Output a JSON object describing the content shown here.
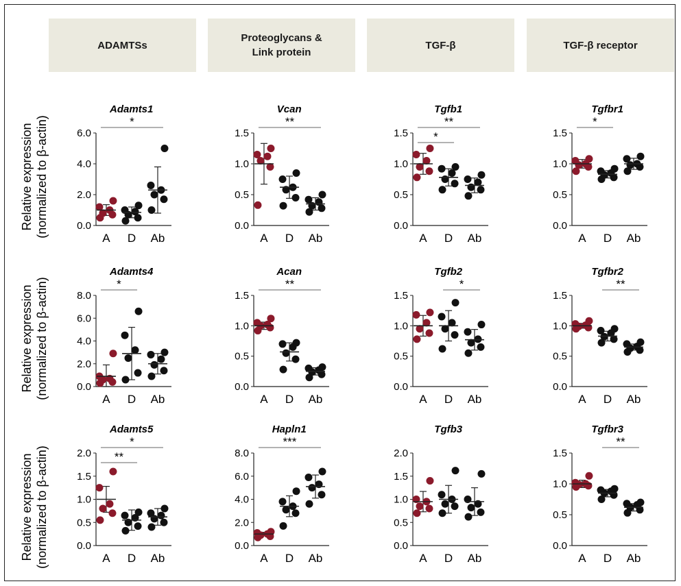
{
  "colors": {
    "accent": "#8b1a2b",
    "point": "#111111",
    "header_bg": "#ebeadf"
  },
  "headers": [
    "ADAMTSs",
    "Proteoglycans &\nLink protein",
    "TGF-β",
    "TGF-β receptor"
  ],
  "ylabel_line1": "Relative expression",
  "ylabel_line2": "(normalized to β-actin)",
  "chart_data": [
    {
      "type": "scatter",
      "title": "Adamts1",
      "categories": [
        "A",
        "D",
        "Ab"
      ],
      "ylim": [
        0,
        6
      ],
      "yticks": [
        "0.0",
        "2.0",
        "4.0",
        "6.0"
      ],
      "series": [
        {
          "values": [
            0.5,
            0.7,
            0.8,
            1.0,
            1.2,
            1.6
          ],
          "mean": 1.0,
          "sd": 0.35
        },
        {
          "values": [
            0.3,
            0.5,
            0.7,
            0.9,
            1.0,
            1.3
          ],
          "mean": 0.85,
          "sd": 0.35
        },
        {
          "values": [
            1.0,
            1.7,
            2.0,
            2.3,
            2.6,
            5.0
          ],
          "mean": 2.3,
          "sd": 1.5
        }
      ],
      "annotations": [
        {
          "from": 0,
          "to": 2,
          "label": "*"
        }
      ]
    },
    {
      "type": "scatter",
      "title": "Vcan",
      "categories": [
        "A",
        "D",
        "Ab"
      ],
      "ylim": [
        0,
        1.5
      ],
      "yticks": [
        "0.0",
        "0.5",
        "1.0",
        "1.5"
      ],
      "series": [
        {
          "values": [
            0.33,
            0.95,
            1.05,
            1.12,
            1.15,
            1.25
          ],
          "mean": 1.0,
          "sd": 0.33
        },
        {
          "values": [
            0.32,
            0.45,
            0.58,
            0.62,
            0.75,
            0.85
          ],
          "mean": 0.62,
          "sd": 0.18
        },
        {
          "values": [
            0.22,
            0.28,
            0.32,
            0.38,
            0.42,
            0.5
          ],
          "mean": 0.35,
          "sd": 0.1
        }
      ],
      "annotations": [
        {
          "from": 0,
          "to": 2,
          "label": "**"
        }
      ]
    },
    {
      "type": "scatter",
      "title": "Tgfb1",
      "categories": [
        "A",
        "D",
        "Ab"
      ],
      "ylim": [
        0,
        1.5
      ],
      "yticks": [
        "0.0",
        "0.5",
        "1.0",
        "1.5"
      ],
      "series": [
        {
          "values": [
            0.78,
            0.88,
            0.95,
            1.05,
            1.15,
            1.25
          ],
          "mean": 1.0,
          "sd": 0.17
        },
        {
          "values": [
            0.58,
            0.68,
            0.75,
            0.85,
            0.92,
            0.95
          ],
          "mean": 0.78,
          "sd": 0.14
        },
        {
          "values": [
            0.48,
            0.58,
            0.62,
            0.7,
            0.75,
            0.82
          ],
          "mean": 0.65,
          "sd": 0.12
        }
      ],
      "annotations": [
        {
          "from": 0,
          "to": 1,
          "label": "*"
        },
        {
          "from": 0,
          "to": 2,
          "label": "**"
        }
      ]
    },
    {
      "type": "scatter",
      "title": "Tgfbr1",
      "categories": [
        "A",
        "D",
        "Ab"
      ],
      "ylim": [
        0,
        1.5
      ],
      "yticks": [
        "0.0",
        "0.5",
        "1.0",
        "1.5"
      ],
      "series": [
        {
          "values": [
            0.88,
            0.95,
            0.98,
            1.0,
            1.05,
            1.08
          ],
          "mean": 1.0,
          "sd": 0.07
        },
        {
          "values": [
            0.75,
            0.78,
            0.82,
            0.85,
            0.88,
            0.92
          ],
          "mean": 0.83,
          "sd": 0.06
        },
        {
          "values": [
            0.88,
            0.95,
            0.98,
            1.0,
            1.08,
            1.12
          ],
          "mean": 1.0,
          "sd": 0.09
        }
      ],
      "annotations": [
        {
          "from": 0,
          "to": 1,
          "label": "*"
        }
      ]
    },
    {
      "type": "scatter",
      "title": "Adamts4",
      "categories": [
        "A",
        "D",
        "Ab"
      ],
      "ylim": [
        0,
        8
      ],
      "yticks": [
        "0.0",
        "2.0",
        "4.0",
        "6.0",
        "8.0"
      ],
      "series": [
        {
          "values": [
            0.3,
            0.4,
            0.6,
            0.7,
            0.9,
            2.9
          ],
          "mean": 0.9,
          "sd": 1.0
        },
        {
          "values": [
            0.6,
            1.2,
            2.5,
            3.2,
            4.5,
            6.6
          ],
          "mean": 2.9,
          "sd": 2.3
        },
        {
          "values": [
            0.9,
            1.4,
            1.9,
            2.4,
            2.8,
            3.0
          ],
          "mean": 2.0,
          "sd": 0.9
        }
      ],
      "annotations": [
        {
          "from": 0,
          "to": 1,
          "label": "*"
        }
      ]
    },
    {
      "type": "scatter",
      "title": "Acan",
      "categories": [
        "A",
        "D",
        "Ab"
      ],
      "ylim": [
        0,
        1.5
      ],
      "yticks": [
        "0.0",
        "0.5",
        "1.0",
        "1.5"
      ],
      "series": [
        {
          "values": [
            0.92,
            0.97,
            1.0,
            1.02,
            1.05,
            1.12
          ],
          "mean": 1.0,
          "sd": 0.06
        },
        {
          "values": [
            0.28,
            0.45,
            0.55,
            0.65,
            0.7,
            0.72
          ],
          "mean": 0.57,
          "sd": 0.15
        },
        {
          "values": [
            0.15,
            0.2,
            0.24,
            0.27,
            0.3,
            0.32
          ],
          "mean": 0.25,
          "sd": 0.06
        }
      ],
      "annotations": [
        {
          "from": 0,
          "to": 2,
          "label": "**"
        }
      ]
    },
    {
      "type": "scatter",
      "title": "Tgfb2",
      "categories": [
        "A",
        "D",
        "Ab"
      ],
      "ylim": [
        0,
        1.5
      ],
      "yticks": [
        "0.0",
        "0.5",
        "1.0",
        "1.5"
      ],
      "series": [
        {
          "values": [
            0.78,
            0.88,
            0.95,
            1.05,
            1.18,
            1.22
          ],
          "mean": 1.0,
          "sd": 0.17
        },
        {
          "values": [
            0.62,
            0.85,
            0.95,
            1.05,
            1.15,
            1.38
          ],
          "mean": 1.0,
          "sd": 0.25
        },
        {
          "values": [
            0.55,
            0.65,
            0.72,
            0.78,
            0.9,
            1.02
          ],
          "mean": 0.77,
          "sd": 0.17
        }
      ],
      "annotations": [
        {
          "from": 1,
          "to": 2,
          "label": "*"
        }
      ]
    },
    {
      "type": "scatter",
      "title": "Tgfbr2",
      "categories": [
        "A",
        "D",
        "Ab"
      ],
      "ylim": [
        0,
        1.5
      ],
      "yticks": [
        "0.0",
        "0.5",
        "1.0",
        "1.5"
      ],
      "series": [
        {
          "values": [
            0.95,
            0.97,
            0.99,
            1.01,
            1.03,
            1.08
          ],
          "mean": 1.0,
          "sd": 0.04
        },
        {
          "values": [
            0.72,
            0.78,
            0.82,
            0.88,
            0.92,
            0.95
          ],
          "mean": 0.83,
          "sd": 0.08
        },
        {
          "values": [
            0.57,
            0.6,
            0.63,
            0.66,
            0.7,
            0.73
          ],
          "mean": 0.65,
          "sd": 0.05
        }
      ],
      "annotations": [
        {
          "from": 1,
          "to": 2,
          "label": "**"
        }
      ]
    },
    {
      "type": "scatter",
      "title": "Adamts5",
      "categories": [
        "A",
        "D",
        "Ab"
      ],
      "ylim": [
        0,
        2
      ],
      "yticks": [
        "0.0",
        "0.5",
        "1.0",
        "1.5",
        "2.0"
      ],
      "series": [
        {
          "values": [
            0.55,
            0.7,
            0.8,
            0.9,
            1.25,
            1.6
          ],
          "mean": 1.0,
          "sd": 0.28
        },
        {
          "values": [
            0.32,
            0.42,
            0.5,
            0.6,
            0.65,
            0.72
          ],
          "mean": 0.55,
          "sd": 0.22
        },
        {
          "values": [
            0.4,
            0.5,
            0.58,
            0.65,
            0.7,
            0.8
          ],
          "mean": 0.62,
          "sd": 0.18
        }
      ],
      "annotations": [
        {
          "from": 0,
          "to": 1,
          "label": "**"
        },
        {
          "from": 0,
          "to": 2,
          "label": "*"
        }
      ]
    },
    {
      "type": "scatter",
      "title": "Hapln1",
      "categories": [
        "A",
        "D",
        "Ab"
      ],
      "ylim": [
        0,
        8
      ],
      "yticks": [
        "0.0",
        "2.0",
        "4.0",
        "6.0",
        "8.0"
      ],
      "series": [
        {
          "values": [
            0.7,
            0.8,
            0.9,
            1.0,
            1.1,
            1.2
          ],
          "mean": 1.0,
          "sd": 0.15
        },
        {
          "values": [
            1.7,
            2.8,
            3.1,
            3.4,
            3.8,
            4.7
          ],
          "mean": 3.4,
          "sd": 0.9
        },
        {
          "values": [
            3.6,
            4.4,
            5.0,
            5.3,
            5.9,
            6.4
          ],
          "mean": 5.1,
          "sd": 1.0
        }
      ],
      "annotations": [
        {
          "from": 0,
          "to": 2,
          "label": "***"
        }
      ]
    },
    {
      "type": "scatter",
      "title": "Tgfb3",
      "categories": [
        "A",
        "D",
        "Ab"
      ],
      "ylim": [
        0,
        2
      ],
      "yticks": [
        "0.0",
        "0.5",
        "1.0",
        "1.5",
        "2.0"
      ],
      "series": [
        {
          "values": [
            0.7,
            0.8,
            0.85,
            0.95,
            1.0,
            1.4
          ],
          "mean": 0.95,
          "sd": 0.22
        },
        {
          "values": [
            0.7,
            0.85,
            0.9,
            1.0,
            1.1,
            1.62
          ],
          "mean": 1.0,
          "sd": 0.3
        },
        {
          "values": [
            0.62,
            0.72,
            0.82,
            0.9,
            1.0,
            1.55
          ],
          "mean": 0.95,
          "sd": 0.3
        }
      ],
      "annotations": []
    },
    {
      "type": "scatter",
      "title": "Tgfbr3",
      "categories": [
        "A",
        "D",
        "Ab"
      ],
      "ylim": [
        0,
        1.5
      ],
      "yticks": [
        "0.0",
        "0.5",
        "1.0",
        "1.5"
      ],
      "series": [
        {
          "values": [
            0.95,
            0.97,
            0.99,
            1.0,
            1.02,
            1.13
          ],
          "mean": 1.0,
          "sd": 0.06
        },
        {
          "values": [
            0.75,
            0.82,
            0.85,
            0.88,
            0.9,
            0.92
          ],
          "mean": 0.85,
          "sd": 0.06
        },
        {
          "values": [
            0.53,
            0.58,
            0.62,
            0.66,
            0.68,
            0.7
          ],
          "mean": 0.62,
          "sd": 0.06
        }
      ],
      "annotations": [
        {
          "from": 1,
          "to": 2,
          "label": "**"
        }
      ]
    }
  ]
}
